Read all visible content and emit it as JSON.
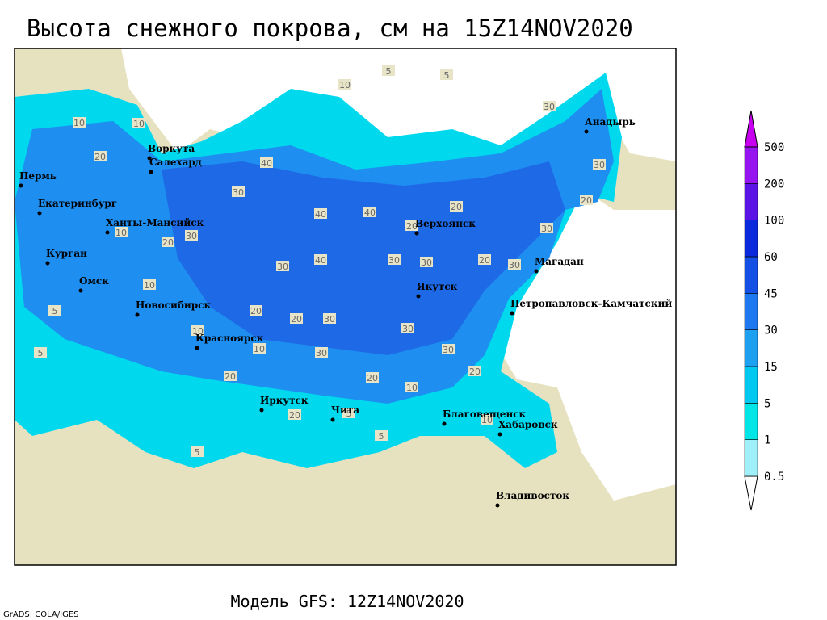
{
  "header": {
    "title": "Высота снежного покрова, см на 15Z14NOV2020"
  },
  "map": {
    "cities": [
      "Воркута",
      "Салехард",
      "Пермь",
      "Екатеринбург",
      "Ханты-Мансийск",
      "Курган",
      "Омск",
      "Новосибирск",
      "Красноярск",
      "Иркутск",
      "Чита",
      "Благовещенск",
      "Хабаровск",
      "Владивосток",
      "Якутск",
      "Верхоянск",
      "Магадан",
      "Петропавловск-Камчатский",
      "Анадырь"
    ],
    "contour_labels": [
      10,
      5,
      5,
      30,
      10,
      10,
      20,
      40,
      30,
      40,
      40,
      20,
      20,
      30,
      10,
      20,
      30,
      30,
      40,
      30,
      30,
      20,
      10,
      20,
      20,
      30,
      30,
      30,
      30,
      10,
      10,
      20,
      10,
      20,
      20,
      5,
      5,
      10,
      5,
      5,
      5,
      30,
      20,
      30,
      20
    ]
  },
  "legend": {
    "levels": [
      0.5,
      1,
      5,
      15,
      30,
      45,
      60,
      100,
      200,
      500
    ],
    "colors": [
      "#ffffff",
      "#a0f0fa",
      "#00e6e6",
      "#00c8f0",
      "#1ea0f0",
      "#1e78f0",
      "#1450e6",
      "#0a28dc",
      "#5a14e6",
      "#9614f0",
      "#c800f0"
    ]
  },
  "footer": {
    "model": "Модель GFS: 12Z14NOV2020",
    "credit": "GrADS: COLA/IGES"
  }
}
